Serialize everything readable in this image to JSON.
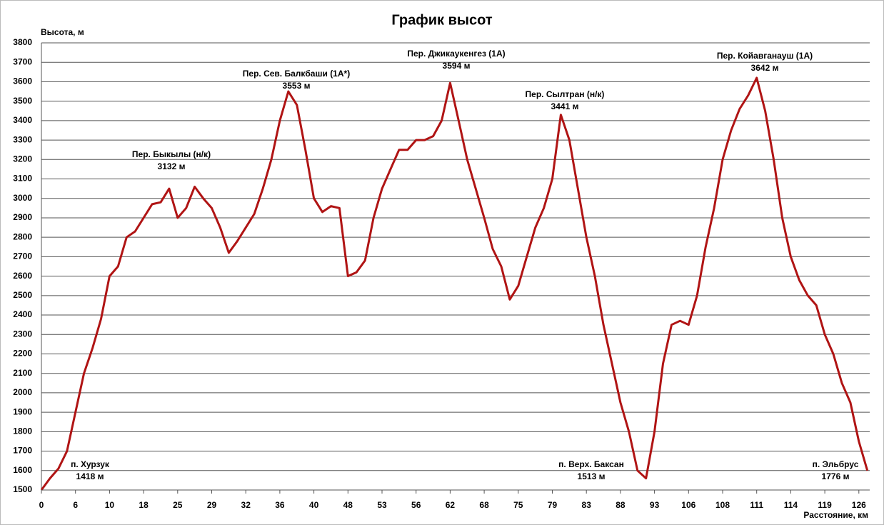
{
  "chart_data": {
    "type": "line",
    "title": "График высот",
    "y_label": "Высота, м",
    "x_label": "Расстояние, км",
    "categories": [
      "0",
      null,
      null,
      null,
      "6",
      null,
      null,
      null,
      "10",
      null,
      null,
      null,
      "18",
      null,
      null,
      null,
      "25",
      null,
      null,
      null,
      "29",
      null,
      null,
      null,
      "32",
      null,
      null,
      null,
      "36",
      null,
      null,
      null,
      "40",
      null,
      null,
      null,
      "48",
      null,
      null,
      null,
      "53",
      null,
      null,
      null,
      "56",
      null,
      null,
      null,
      "62",
      null,
      null,
      null,
      "68",
      null,
      null,
      null,
      "75",
      null,
      null,
      null,
      "79",
      null,
      null,
      null,
      "83",
      null,
      null,
      null,
      "88",
      null,
      null,
      null,
      "93",
      null,
      null,
      null,
      "106",
      null,
      null,
      null,
      "108",
      null,
      null,
      null,
      "111",
      null,
      null,
      null,
      "114",
      null,
      null,
      null,
      "119",
      null,
      null,
      null,
      "126",
      null
    ],
    "series": [
      {
        "name": "Высота",
        "color": "#b01414",
        "values": [
          1500,
          1560,
          1610,
          1700,
          1900,
          2100,
          2230,
          2380,
          2600,
          2650,
          2800,
          2830,
          2900,
          2970,
          2980,
          3050,
          2900,
          2950,
          3060,
          3000,
          2950,
          2850,
          2720,
          2780,
          2850,
          2920,
          3050,
          3200,
          3400,
          3550,
          3480,
          3250,
          3000,
          2930,
          2960,
          2950,
          2600,
          2620,
          2680,
          2900,
          3050,
          3150,
          3250,
          3250,
          3300,
          3300,
          3320,
          3400,
          3594,
          3400,
          3200,
          3050,
          2900,
          2740,
          2650,
          2480,
          2550,
          2700,
          2850,
          2950,
          3100,
          3430,
          3300,
          3050,
          2800,
          2600,
          2350,
          2150,
          1950,
          1800,
          1600,
          1560,
          1800,
          2150,
          2350,
          2370,
          2350,
          2500,
          2750,
          2950,
          3200,
          3350,
          3460,
          3530,
          3620,
          3450,
          3200,
          2900,
          2700,
          2580,
          2500,
          2450,
          2300,
          2200,
          2050,
          1950,
          1750,
          1600
        ]
      }
    ],
    "ylim": [
      1500,
      3800
    ],
    "yticks": [
      1500,
      1600,
      1700,
      1800,
      1900,
      2000,
      2100,
      2200,
      2300,
      2400,
      2500,
      2600,
      2700,
      2800,
      2900,
      3000,
      3100,
      3200,
      3300,
      3400,
      3500,
      3600,
      3700,
      3800
    ],
    "grid": true,
    "annotations": [
      [
        "Пер. Быкылы (н/к)",
        "3132 м"
      ],
      [
        "Пер. Сев. Балкбаши (1А*)",
        "3553 м"
      ],
      [
        "Пер. Джикаукенгез (1А)",
        "3594 м"
      ],
      [
        "Пер. Сылтран (н/к)",
        "3441 м"
      ],
      [
        "Пер. Койавганауш (1А)",
        "3642 м"
      ],
      [
        "п. Хурзук",
        "1418 м"
      ],
      [
        "п. Верх. Баксан",
        "1513 м"
      ],
      [
        "п. Эльбрус",
        "1776 м"
      ]
    ]
  }
}
